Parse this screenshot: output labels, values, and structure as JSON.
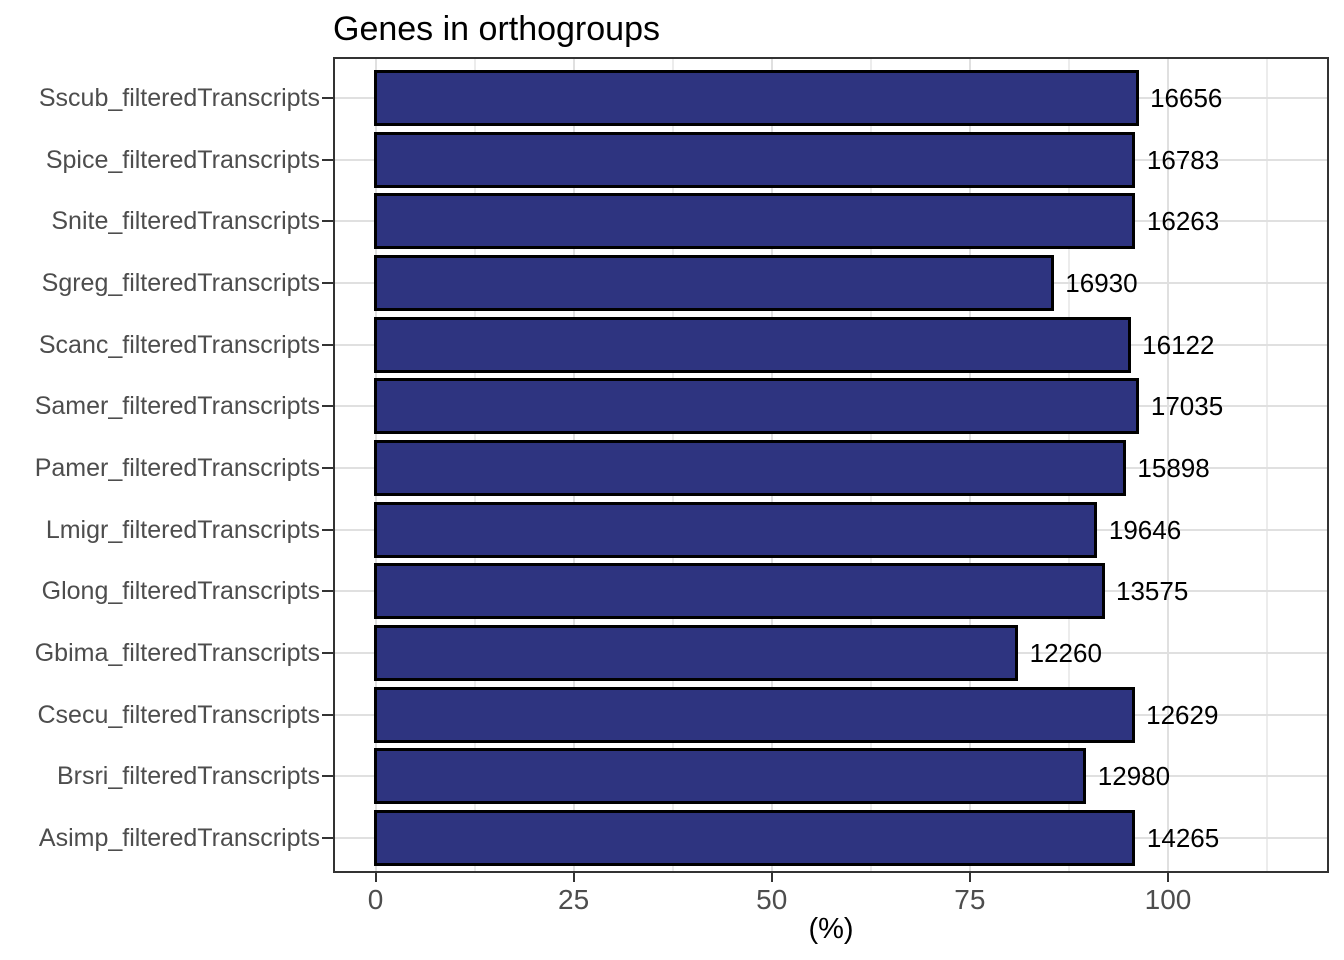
{
  "title": "Genes in orthogroups",
  "axis": {
    "x_label": "(%)",
    "x_tick_labels": [
      "0",
      "25",
      "50",
      "75",
      "100"
    ]
  },
  "colors": {
    "bar_fill": "#2e3480",
    "bar_stroke": "#000000",
    "panel_border": "#333333",
    "grid_major": "#e0e0e0",
    "grid_minor": "#ececec",
    "axis_text": "#4d4d4d",
    "title_text": "#000000"
  },
  "chart_data": {
    "type": "bar",
    "orientation": "horizontal",
    "title": "Genes in orthogroups",
    "xlabel": "(%)",
    "ylabel": "",
    "xlim": [
      -5.4,
      120.1
    ],
    "x_major_ticks": [
      0,
      25,
      50,
      75,
      100
    ],
    "x_minor_ticks": [
      12.5,
      37.5,
      62.5,
      87.5,
      112.5
    ],
    "grid": true,
    "legend": false,
    "categories": [
      "Sscub_filteredTranscripts",
      "Spice_filteredTranscripts",
      "Snite_filteredTranscripts",
      "Sgreg_filteredTranscripts",
      "Scanc_filteredTranscripts",
      "Samer_filteredTranscripts",
      "Pamer_filteredTranscripts",
      "Lmigr_filteredTranscripts",
      "Glong_filteredTranscripts",
      "Gbima_filteredTranscripts",
      "Csecu_filteredTranscripts",
      "Brsri_filteredTranscripts",
      "Asimp_filteredTranscripts"
    ],
    "series": [
      {
        "name": "percent_of_genes_in_orthogroups",
        "values": [
          96.1,
          95.7,
          95.7,
          85.4,
          95.1,
          96.2,
          94.5,
          90.9,
          91.8,
          80.9,
          95.6,
          89.5,
          95.7
        ]
      }
    ],
    "bar_labels": [
      "16656",
      "16783",
      "16263",
      "16930",
      "16122",
      "17035",
      "15898",
      "19646",
      "13575",
      "12260",
      "12629",
      "12980",
      "14265"
    ]
  }
}
